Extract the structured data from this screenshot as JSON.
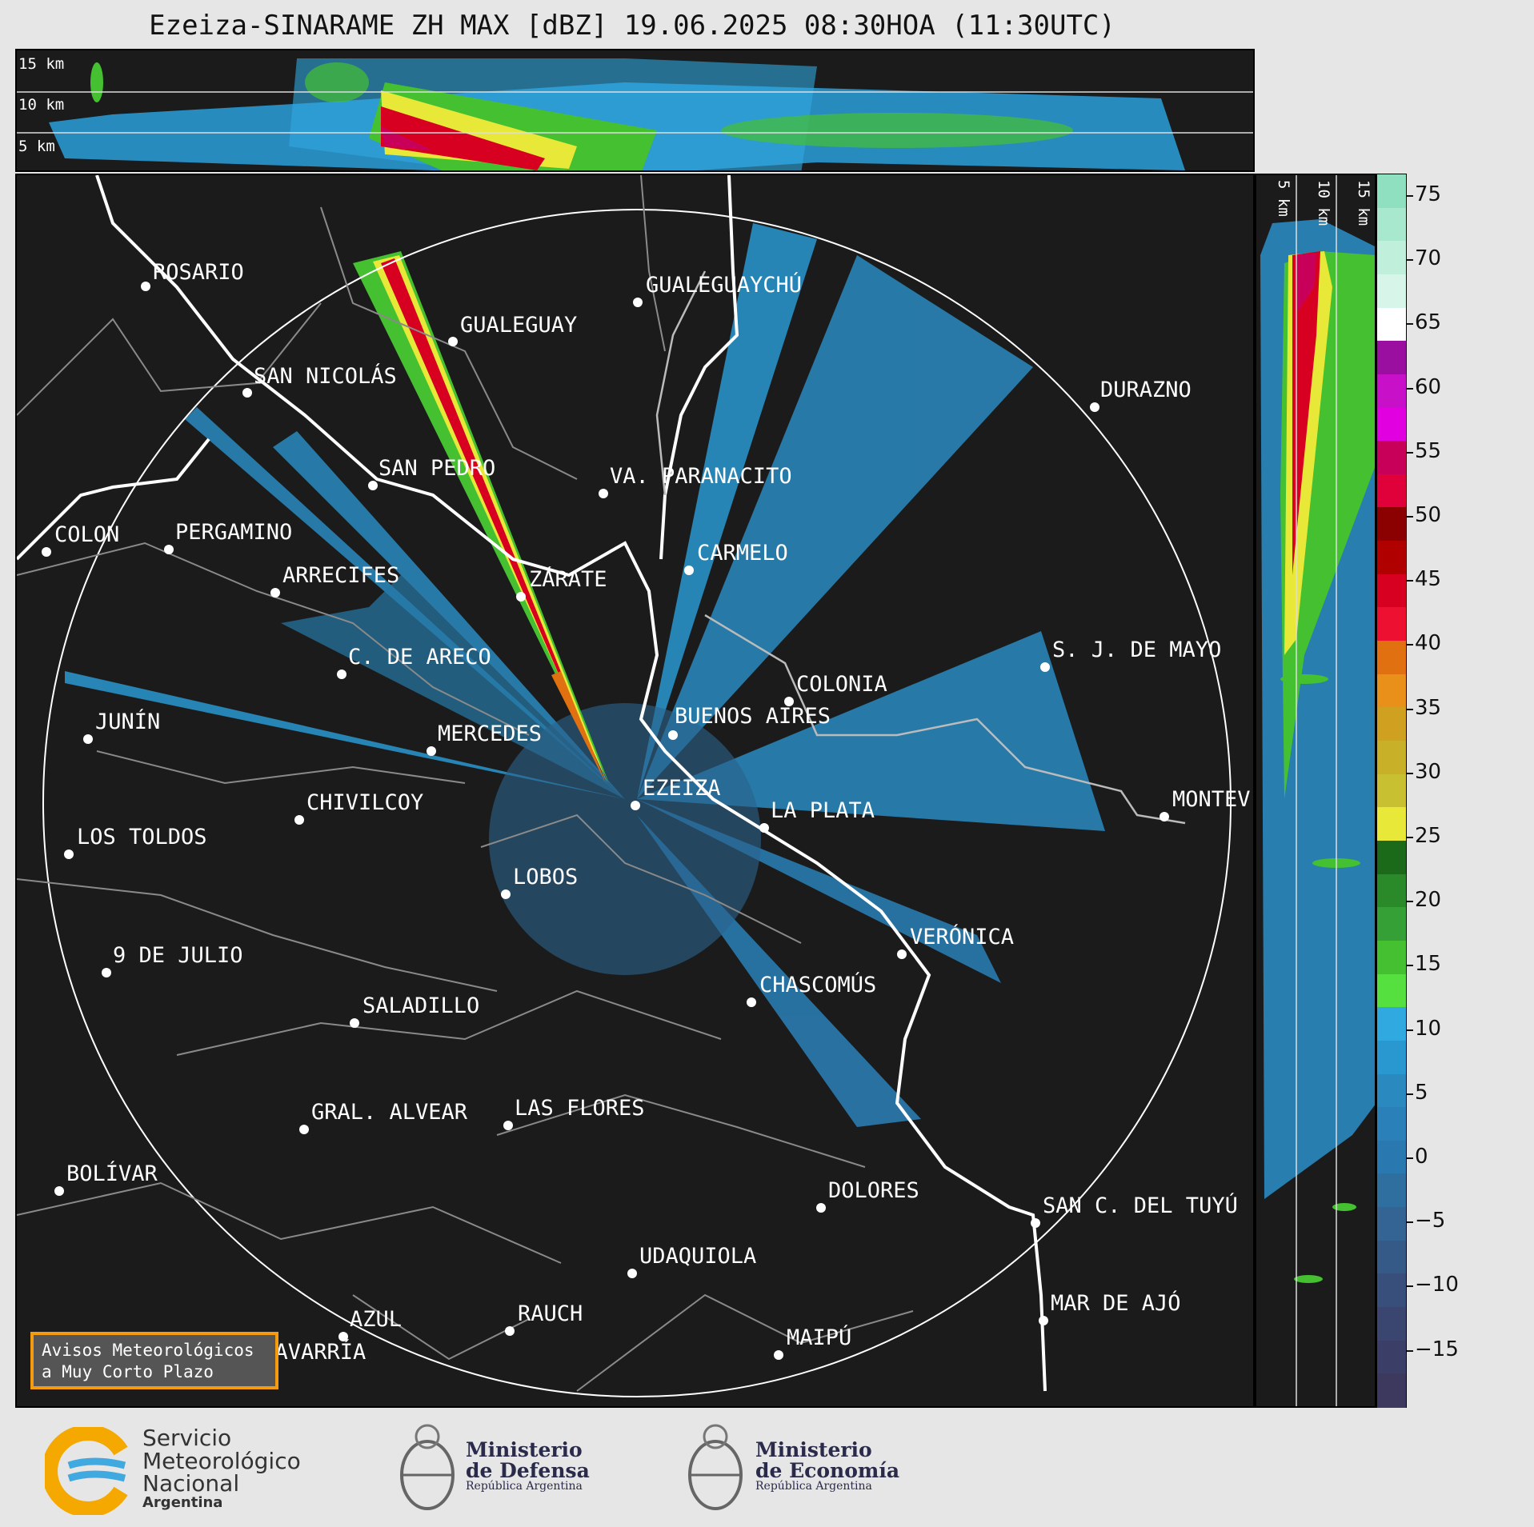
{
  "title": "Ezeiza-SINARAME ZH MAX [dBZ] 19.06.2025 08:30HOA (11:30UTC)",
  "top_panel": {
    "height_labels": [
      "15 km",
      "10 km",
      "5 km"
    ]
  },
  "side_panel": {
    "height_labels": [
      "5 km",
      "10 km",
      "15 km"
    ]
  },
  "colorbar": {
    "unit": "dBZ",
    "ticks": [
      "75",
      "70",
      "65",
      "60",
      "55",
      "50",
      "45",
      "40",
      "35",
      "30",
      "25",
      "20",
      "15",
      "10",
      "5",
      "0",
      "−5",
      "−10",
      "−15"
    ],
    "colors": [
      "#8fe0c0",
      "#a8e8cf",
      "#c0efdc",
      "#d8f5e9",
      "#ffffff",
      "#9a0fa0",
      "#c810c8",
      "#e000e0",
      "#c8005a",
      "#e0003a",
      "#8b0000",
      "#b00000",
      "#d80020",
      "#ee1030",
      "#e07010",
      "#e8901a",
      "#d0a020",
      "#c8b028",
      "#c8c030",
      "#e8e838",
      "#1a6a1a",
      "#2a8a2a",
      "#35a035",
      "#45c030",
      "#55e040",
      "#30a8e0",
      "#2a98d0",
      "#2a8ac0",
      "#2a80b8",
      "#2a78b0",
      "#2e6fa0",
      "#336494",
      "#365a88",
      "#384f7c",
      "#3a4670",
      "#3b3e66",
      "#3c385e"
    ]
  },
  "map": {
    "cities": [
      {
        "name": "ROSARIO"
      },
      {
        "name": "GUALEGUAYCHÚ"
      },
      {
        "name": "GUALEGUAY"
      },
      {
        "name": "SAN NICOLÁS"
      },
      {
        "name": "DURAZNO"
      },
      {
        "name": "SAN PEDRO"
      },
      {
        "name": "VA. PARANACITO"
      },
      {
        "name": "COLON"
      },
      {
        "name": "PERGAMINO"
      },
      {
        "name": "CARMELO"
      },
      {
        "name": "ARRECIFES"
      },
      {
        "name": "ZÁRATE"
      },
      {
        "name": "S. J. DE MAYO"
      },
      {
        "name": "C. DE ARECO"
      },
      {
        "name": "COLONIA"
      },
      {
        "name": "BUENOS AIRES"
      },
      {
        "name": "JUNÍN"
      },
      {
        "name": "MERCEDES"
      },
      {
        "name": "EZEIZA"
      },
      {
        "name": "MONTEV"
      },
      {
        "name": "CHIVILCOY"
      },
      {
        "name": "LA PLATA"
      },
      {
        "name": "LOS TOLDOS"
      },
      {
        "name": "LOBOS"
      },
      {
        "name": "VERÓNICA"
      },
      {
        "name": "9 DE JULIO"
      },
      {
        "name": "CHASCOMÚS"
      },
      {
        "name": "SALADILLO"
      },
      {
        "name": "GRAL. ALVEAR"
      },
      {
        "name": "LAS FLORES"
      },
      {
        "name": "BOLÍVAR"
      },
      {
        "name": "DOLORES"
      },
      {
        "name": "SAN C. DEL TUYÚ"
      },
      {
        "name": "UDAQUIOLA"
      },
      {
        "name": "MAR DE AJÓ"
      },
      {
        "name": "AZUL"
      },
      {
        "name": "RAUCH"
      },
      {
        "name": "MAIPÚ"
      },
      {
        "name": "OLAVARRÍA"
      }
    ]
  },
  "avisos": {
    "line1": "Avisos Meteorológicos",
    "line2": "a Muy Corto Plazo"
  },
  "footer": {
    "smn": {
      "line1": "Servicio",
      "line2": "Meteorológico",
      "line3": "Nacional",
      "line4": "Argentina"
    },
    "defensa": {
      "line1": "Ministerio",
      "line2": "de Defensa",
      "line3": "República Argentina"
    },
    "economia": {
      "line1": "Ministerio",
      "line2": "de Economía",
      "line3": "República Argentina"
    }
  }
}
